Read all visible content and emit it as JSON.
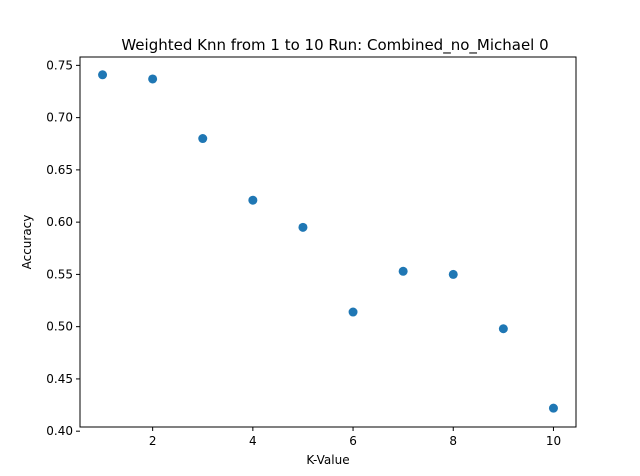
{
  "chart_data": {
    "type": "scatter",
    "title": "Weighted Knn from 1 to 10 Run: Combined_no_Michael 0",
    "xlabel": "K-Value",
    "ylabel": "Accuracy",
    "xlim": [
      0.55,
      10.45
    ],
    "ylim": [
      0.404,
      0.758
    ],
    "xticks": [
      2,
      4,
      6,
      8,
      10
    ],
    "xtick_labels": [
      "2",
      "4",
      "6",
      "8",
      "10"
    ],
    "yticks": [
      0.4,
      0.45,
      0.5,
      0.55,
      0.6,
      0.65,
      0.7,
      0.75
    ],
    "ytick_labels": [
      "0.40",
      "0.45",
      "0.50",
      "0.55",
      "0.60",
      "0.65",
      "0.70",
      "0.75"
    ],
    "grid": false,
    "series": [
      {
        "color": "#1f77b4",
        "x": [
          1,
          2,
          3,
          4,
          5,
          6,
          7,
          8,
          9,
          10
        ],
        "y": [
          0.741,
          0.737,
          0.68,
          0.621,
          0.595,
          0.514,
          0.553,
          0.55,
          0.498,
          0.422
        ]
      }
    ]
  }
}
